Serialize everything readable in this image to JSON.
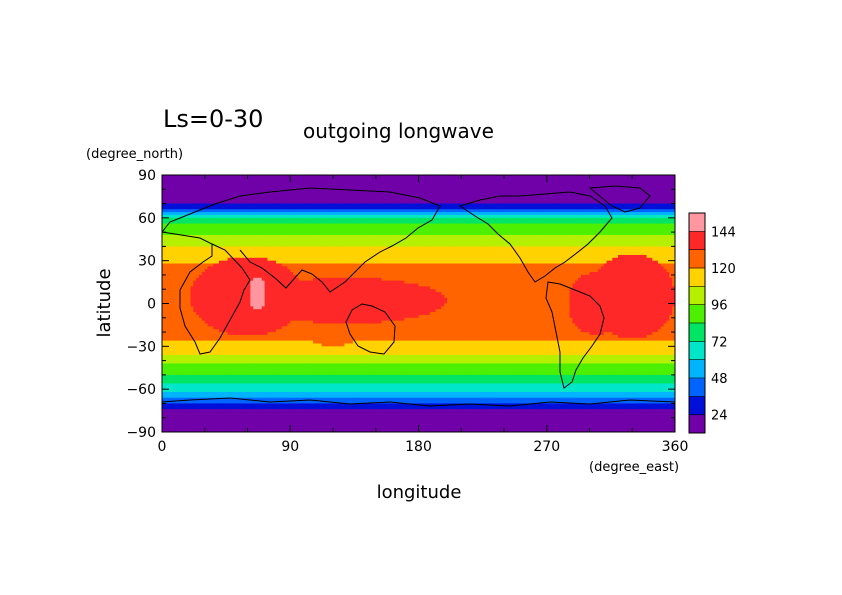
{
  "chart_data": {
    "type": "heatmap",
    "title": "Ls=0-30",
    "subtitle": "outgoing longwave",
    "xlabel": "longitude",
    "ylabel": "latitude",
    "x_unit": "(degree_east)",
    "y_unit": "(degree_north)",
    "xlim": [
      0,
      360
    ],
    "ylim": [
      -90,
      90
    ],
    "x_ticks": [
      0,
      90,
      180,
      270,
      360
    ],
    "y_ticks": [
      90,
      60,
      30,
      0,
      -30,
      -60,
      -90
    ],
    "colorbar": {
      "levels": [
        12,
        24,
        36,
        48,
        60,
        72,
        84,
        96,
        108,
        120,
        132,
        144,
        156
      ],
      "labeled_levels": [
        24,
        48,
        72,
        96,
        120,
        144
      ],
      "colors": [
        "#7000a8",
        "#0010d8",
        "#0064ff",
        "#00b4ff",
        "#00e6c8",
        "#00e664",
        "#4cf000",
        "#b4f000",
        "#ffd200",
        "#ff6400",
        "#ff2828",
        "#ff96a0"
      ]
    },
    "zonal_profile": [
      {
        "lat": 90,
        "value": 18
      },
      {
        "lat": 85,
        "value": 18
      },
      {
        "lat": 75,
        "value": 18
      },
      {
        "lat": 70,
        "value": 20
      },
      {
        "lat": 68,
        "value": 30
      },
      {
        "lat": 66,
        "value": 40
      },
      {
        "lat": 64,
        "value": 52
      },
      {
        "lat": 62,
        "value": 65
      },
      {
        "lat": 58,
        "value": 78
      },
      {
        "lat": 52,
        "value": 90
      },
      {
        "lat": 45,
        "value": 102
      },
      {
        "lat": 36,
        "value": 114
      },
      {
        "lat": 25,
        "value": 122
      },
      {
        "lat": 12,
        "value": 128
      },
      {
        "lat": 0,
        "value": 130
      },
      {
        "lat": -12,
        "value": 129
      },
      {
        "lat": -22,
        "value": 124
      },
      {
        "lat": -30,
        "value": 116
      },
      {
        "lat": -38,
        "value": 104
      },
      {
        "lat": -45,
        "value": 92
      },
      {
        "lat": -52,
        "value": 80
      },
      {
        "lat": -58,
        "value": 68
      },
      {
        "lat": -63,
        "value": 56
      },
      {
        "lat": -68,
        "value": 44
      },
      {
        "lat": -72,
        "value": 32
      },
      {
        "lat": -76,
        "value": 20
      },
      {
        "lat": -85,
        "value": 18
      },
      {
        "lat": -90,
        "value": 18
      }
    ],
    "anomalies": [
      {
        "lon": 60,
        "lat": 5,
        "rlon": 40,
        "rlat": 28,
        "value": 137
      },
      {
        "lon": 130,
        "lat": 2,
        "rlon": 70,
        "rlat": 16,
        "value": 134
      },
      {
        "lon": 330,
        "lat": 5,
        "rlon": 30,
        "rlat": 30,
        "value": 136
      },
      {
        "lon": 305,
        "lat": 0,
        "rlon": 20,
        "rlat": 22,
        "value": 136
      },
      {
        "lon": 67,
        "lat": 7,
        "rlon": 6,
        "rlat": 11,
        "value": 150
      },
      {
        "lon": 230,
        "lat": -5,
        "rlon": 40,
        "rlat": 30,
        "value": 112
      },
      {
        "lon": 260,
        "lat": -5,
        "rlon": 18,
        "rlat": 25,
        "value": 110
      },
      {
        "lon": 15,
        "lat": -10,
        "rlon": 22,
        "rlat": 22,
        "value": 118
      },
      {
        "lon": 120,
        "lat": -18,
        "rlon": 22,
        "rlat": 12,
        "value": 120
      }
    ]
  }
}
